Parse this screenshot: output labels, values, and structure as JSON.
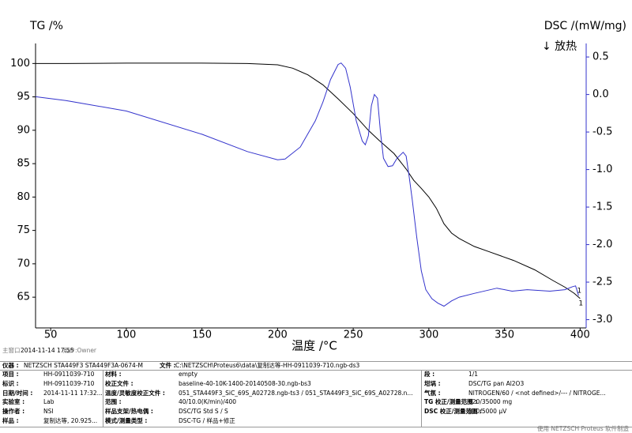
{
  "chart_data": {
    "type": "line",
    "y_label": "TG /%",
    "y2_label": "DSC /(mW/mg)",
    "annotation": "↓ 放热",
    "x_label": "温度 /°C",
    "xlim": [
      40,
      404
    ],
    "xticks": [
      50,
      100,
      150,
      200,
      250,
      300,
      350,
      400
    ],
    "ylim": [
      60.4,
      103
    ],
    "yticks": [
      65,
      70,
      75,
      80,
      85,
      90,
      95,
      100
    ],
    "y2lim": [
      -3.11,
      0.68
    ],
    "y2ticks": [
      0.5,
      {
        "value": 0,
        "label": "0.0"
      },
      -0.5,
      {
        "value": -1,
        "label": "-1.0"
      },
      -1.5,
      {
        "value": -2,
        "label": "-2.0"
      },
      -2.5,
      {
        "value": -3,
        "label": "-3.0"
      }
    ],
    "series": [
      {
        "color": "#000000",
        "end_label": "1",
        "x": [
          40,
          60,
          100,
          150,
          180,
          200,
          210,
          220,
          230,
          240,
          250,
          260,
          267,
          277,
          285,
          290,
          295,
          300,
          305,
          310,
          315,
          320,
          330,
          340,
          356,
          370,
          382,
          390,
          396,
          400
        ],
        "values": [
          100,
          100,
          100.05,
          100.05,
          100,
          99.8,
          99.3,
          98.3,
          96.8,
          94.7,
          92.5,
          90,
          88.5,
          86.5,
          84.2,
          82.5,
          81.3,
          80,
          78.3,
          76,
          74.6,
          73.8,
          72.6,
          71.8,
          70.5,
          69.1,
          67.5,
          66.5,
          65.6,
          64.8
        ]
      },
      {
        "color": "#3333cc",
        "axis": "y2",
        "end_label": "1",
        "x": [
          40,
          60,
          100,
          150,
          180,
          200,
          205,
          215,
          225,
          230,
          235,
          240,
          242,
          245,
          248,
          252,
          256,
          258,
          260,
          262,
          264,
          266,
          268,
          270,
          273,
          276,
          279,
          283,
          285,
          287,
          289,
          292,
          295,
          298,
          302,
          306,
          310,
          315,
          320,
          330,
          345,
          355,
          365,
          380,
          390,
          395,
          397,
          399
        ],
        "values": [
          -0.03,
          -0.08,
          -0.22,
          -0.53,
          -0.76,
          -0.87,
          -0.86,
          -0.7,
          -0.35,
          -0.1,
          0.2,
          0.4,
          0.42,
          0.35,
          0.1,
          -0.35,
          -0.62,
          -0.67,
          -0.55,
          -0.15,
          0.0,
          -0.05,
          -0.5,
          -0.85,
          -0.96,
          -0.95,
          -0.85,
          -0.77,
          -0.82,
          -1.1,
          -1.4,
          -1.9,
          -2.35,
          -2.6,
          -2.72,
          -2.78,
          -2.82,
          -2.75,
          -2.7,
          -2.65,
          -2.58,
          -2.62,
          -2.6,
          -2.62,
          -2.6,
          -2.56,
          -2.55,
          -2.68
        ]
      }
    ]
  },
  "status": {
    "window": "主窗口",
    "datetime": "2014-11-14 17:55",
    "user": "用户:Owner"
  },
  "info": {
    "header": [
      {
        "label": "仪器 :",
        "value": "NETZSCH STA449F3 STA449F3A-0674-M"
      },
      {
        "label": "文件 :",
        "value": "C:\\NETZSCH\\Proteus6\\data\\复制达等-HH-0911039-710.ngb-ds3"
      }
    ],
    "columns": [
      [
        {
          "label": "项目 :",
          "value": "HH-0911039-710"
        },
        {
          "label": "标识 :",
          "value": "HH-0911039-710"
        },
        {
          "label": "日期/时间 :",
          "value": "2014-11-11 17:32..."
        },
        {
          "label": "实验室 :",
          "value": "Lab"
        },
        {
          "label": "操作者 :",
          "value": "NSI"
        },
        {
          "label": "样品 :",
          "value": "复制达等, 20.925..."
        }
      ],
      [
        {
          "label": "材料 :",
          "value": "empty"
        },
        {
          "label": "校正文件 :",
          "value": "baseline-40-10K-1400-20140508-30.ngb-bs3"
        },
        {
          "label": "温度/灵敏度校正文件 :",
          "value": "051_STA449F3_SiC_69S_A02728.ngb-ts3 / 051_STA449F3_SiC_69S_A02728.n..."
        },
        {
          "label": "范围 :",
          "value": "40/10.0(K/min)/400"
        },
        {
          "label": "样品支架/热电偶 :",
          "value": "DSC/TG Std S / S"
        },
        {
          "label": "模式/测量类型 :",
          "value": "DSC-TG / 样品+修正"
        }
      ],
      [
        {
          "label": "段 :",
          "value": "1/1"
        },
        {
          "label": "坩埚 :",
          "value": "DSC/TG pan Al2O3"
        },
        {
          "label": "气氛 :",
          "value": "NITROGEN/60 / <not defined>/--- / NITROGE..."
        },
        {
          "label": "TG 校正/测量范围 :",
          "value": "020/35000 mg"
        },
        {
          "label": "DSC 校正/测量范围 :",
          "value": "020/5000 µV"
        }
      ]
    ]
  },
  "footer": "使用 NETZSCH Proteus 软件制造"
}
